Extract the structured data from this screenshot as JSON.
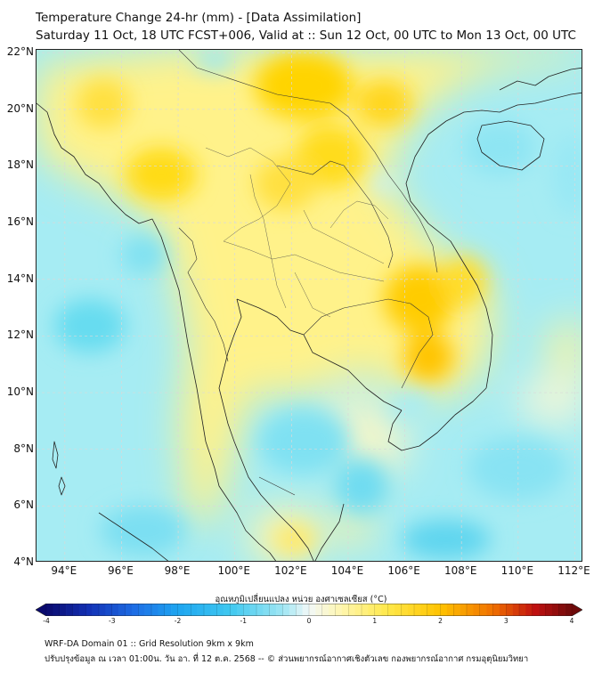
{
  "title": {
    "line1": "Temperature Change 24-hr (mm) - [Data Assimilation]",
    "line2": "Saturday 11 Oct, 18 UTC FCST+006, Valid at :: Sun 12 Oct, 00 UTC to Mon 13 Oct, 00 UTC"
  },
  "map": {
    "lon_range": [
      93,
      112.3
    ],
    "lat_range": [
      4,
      22.1
    ],
    "lat_ticks": [
      {
        "value": 22,
        "label": "22°N"
      },
      {
        "value": 20,
        "label": "20°N"
      },
      {
        "value": 18,
        "label": "18°N"
      },
      {
        "value": 16,
        "label": "16°N"
      },
      {
        "value": 14,
        "label": "14°N"
      },
      {
        "value": 12,
        "label": "12°N"
      },
      {
        "value": 10,
        "label": "10°N"
      },
      {
        "value": 8,
        "label": "8°N"
      },
      {
        "value": 6,
        "label": "6°N"
      },
      {
        "value": 4,
        "label": "4°N"
      }
    ],
    "lon_ticks": [
      {
        "value": 94,
        "label": "94°E"
      },
      {
        "value": 96,
        "label": "96°E"
      },
      {
        "value": 98,
        "label": "98°E"
      },
      {
        "value": 100,
        "label": "100°E"
      },
      {
        "value": 102,
        "label": "102°E"
      },
      {
        "value": 104,
        "label": "104°E"
      },
      {
        "value": 106,
        "label": "106°E"
      },
      {
        "value": 108,
        "label": "108°E"
      },
      {
        "value": 110,
        "label": "110°E"
      },
      {
        "value": 112,
        "label": "112°E"
      }
    ]
  },
  "colorbar": {
    "title": "อุณหภูมิเปลี่ยนแปลง หน่วย องศาเซลเซียส (°C)",
    "ticks": [
      "-4",
      "-3",
      "-2",
      "-1",
      "0",
      "1",
      "2",
      "3",
      "4"
    ],
    "min": -4,
    "max": 4
  },
  "footer": {
    "line1": "WRF-DA Domain 01 :: Grid Resolution 9km x 9km",
    "line2": "ปรับปรุงข้อมูล ณ เวลา 01:00น. วัน อา. ที่ 12 ต.ค. 2568 -- © ส่วนพยากรณ์อากาศเชิงตัวเลข กองพยากรณ์อากาศ กรมอุตุนิยมวิทยา"
  }
}
